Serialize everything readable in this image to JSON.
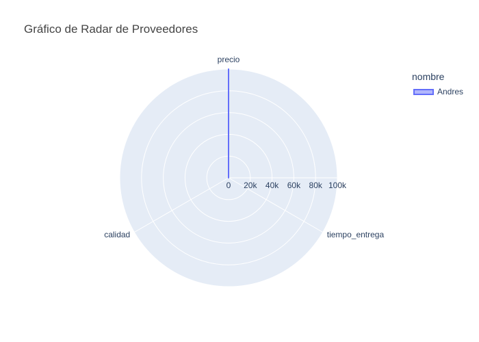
{
  "chart_data": {
    "type": "radar",
    "title": "Gráfico de Radar de Proveedores",
    "axes": [
      "precio",
      "tiempo_entrega",
      "calidad"
    ],
    "radial_range": [
      0,
      100000
    ],
    "radial_ticks": [
      0,
      20000,
      40000,
      60000,
      80000,
      100000
    ],
    "radial_tick_labels": [
      "0",
      "20k",
      "40k",
      "60k",
      "80k",
      "100k"
    ],
    "grid": true,
    "legend_title": "nombre",
    "legend_position": "top-right",
    "series": [
      {
        "name": "Andres",
        "color": "#636efa",
        "values": [
          100000,
          0,
          0
        ]
      }
    ]
  }
}
